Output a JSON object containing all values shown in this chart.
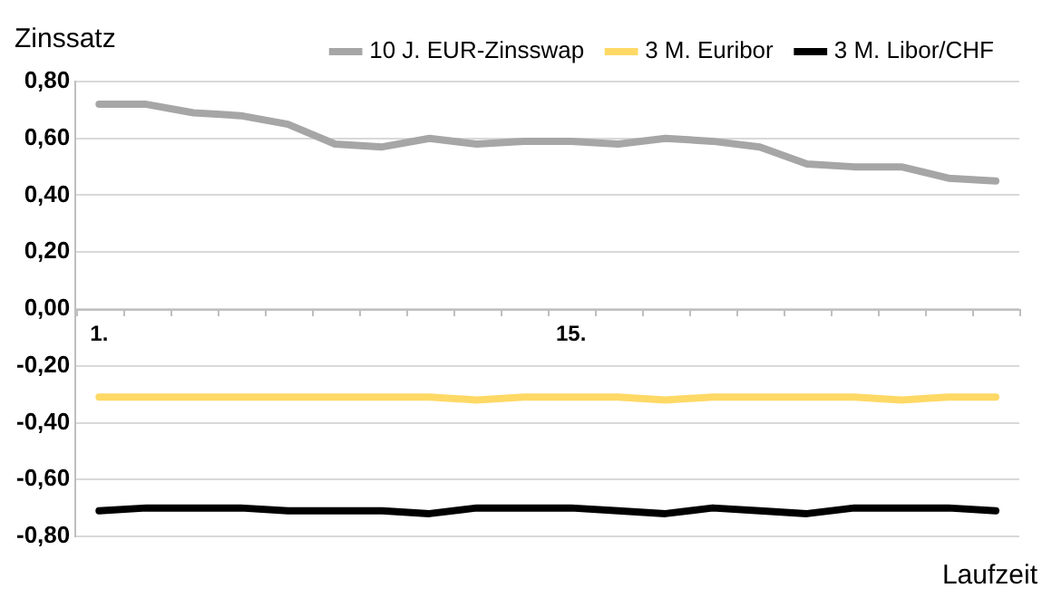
{
  "chart_data": {
    "type": "line",
    "ylabel": "Zinssatz",
    "xlabel": "Laufzeit",
    "categories": [
      "1.",
      null,
      null,
      null,
      null,
      null,
      null,
      null,
      null,
      null,
      "15.",
      null,
      null,
      null,
      null,
      null,
      null,
      null,
      null,
      null
    ],
    "series": [
      {
        "name": "10 J. EUR-Zinsswap",
        "color": "#a6a6a6",
        "values": [
          0.72,
          0.72,
          0.69,
          0.68,
          0.65,
          0.58,
          0.57,
          0.6,
          0.58,
          0.59,
          0.59,
          0.58,
          0.6,
          0.59,
          0.57,
          0.51,
          0.5,
          0.5,
          0.46,
          0.45
        ]
      },
      {
        "name": "3 M. Euribor",
        "color": "#ffd966",
        "values": [
          -0.31,
          -0.31,
          -0.31,
          -0.31,
          -0.31,
          -0.31,
          -0.31,
          -0.31,
          -0.32,
          -0.31,
          -0.31,
          -0.31,
          -0.32,
          -0.31,
          -0.31,
          -0.31,
          -0.31,
          -0.32,
          -0.31,
          -0.31
        ]
      },
      {
        "name": "3 M. Libor/CHF",
        "color": "#000000",
        "values": [
          -0.71,
          -0.7,
          -0.7,
          -0.7,
          -0.71,
          -0.71,
          -0.71,
          -0.72,
          -0.7,
          -0.7,
          -0.7,
          -0.71,
          -0.72,
          -0.7,
          -0.71,
          -0.72,
          -0.7,
          -0.7,
          -0.7,
          -0.71
        ]
      }
    ],
    "ylim": [
      -0.8,
      0.8
    ],
    "yticks": [
      {
        "value": 0.8,
        "label": "0,80"
      },
      {
        "value": 0.6,
        "label": "0,60"
      },
      {
        "value": 0.4,
        "label": "0,40"
      },
      {
        "value": 0.2,
        "label": "0,20"
      },
      {
        "value": 0,
        "label": "0,00"
      },
      {
        "value": -0.2,
        "label": "-0,20"
      },
      {
        "value": -0.4,
        "label": "-0,40"
      },
      {
        "value": -0.6,
        "label": "-0,60"
      },
      {
        "value": -0.8,
        "label": "-0,80"
      }
    ],
    "grid": "y",
    "legend": "top",
    "marker": "none",
    "line_style": "solid"
  }
}
